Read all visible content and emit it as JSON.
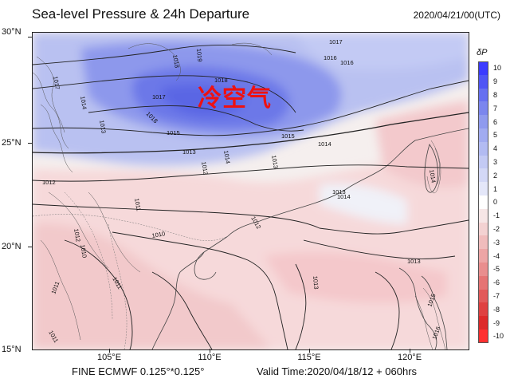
{
  "header": {
    "title": "Sea-level Pressure & 24h Departure",
    "datetime": "2020/04/21/00(UTC)"
  },
  "map": {
    "lat_labels": [
      "30°N",
      "25°N",
      "20°N",
      "15°N"
    ],
    "lon_labels": [
      "105°E",
      "110°E",
      "115°E",
      "120°E"
    ],
    "annotation": "冷空气",
    "annotation_color": "#ee1111",
    "isobar_labels": [
      "1018",
      "1019",
      "1018",
      "1017",
      "1016",
      "1017",
      "1016",
      "1017",
      "1014",
      "1013",
      "1018",
      "1015",
      "1015",
      "1013",
      "1012",
      "1014",
      "1013",
      "1014",
      "1012",
      "1010",
      "1011",
      "1012",
      "1013",
      "1011",
      "1012",
      "1011",
      "1010",
      "1011",
      "1014",
      "1013",
      "1013",
      "1014",
      "1015",
      "1016"
    ]
  },
  "colorbar": {
    "title": "δP",
    "labels": [
      "10",
      "9",
      "8",
      "7",
      "6",
      "5",
      "4",
      "3",
      "2",
      "1",
      "0",
      "-1",
      "-2",
      "-3",
      "-4",
      "-5",
      "-6",
      "-7",
      "-8",
      "-9",
      "-10"
    ],
    "colors": [
      "#3b3bff",
      "#4f55f5",
      "#6670f0",
      "#7b86ee",
      "#8f9aee",
      "#a1abf0",
      "#b2bbf2",
      "#c3caf4",
      "#d3d8f6",
      "#e4e7f9",
      "#ffffff",
      "#f6e6e6",
      "#f3d2d2",
      "#f0bcbc",
      "#eda5a5",
      "#e98e8e",
      "#e57474",
      "#e25a5a",
      "#df4141",
      "#dd2a2a",
      "#ff3030"
    ]
  },
  "footer": {
    "model": "FINE ECMWF 0.125°*0.125°",
    "valid_time": "Valid Time:2020/04/18/12 + 060hrs"
  }
}
